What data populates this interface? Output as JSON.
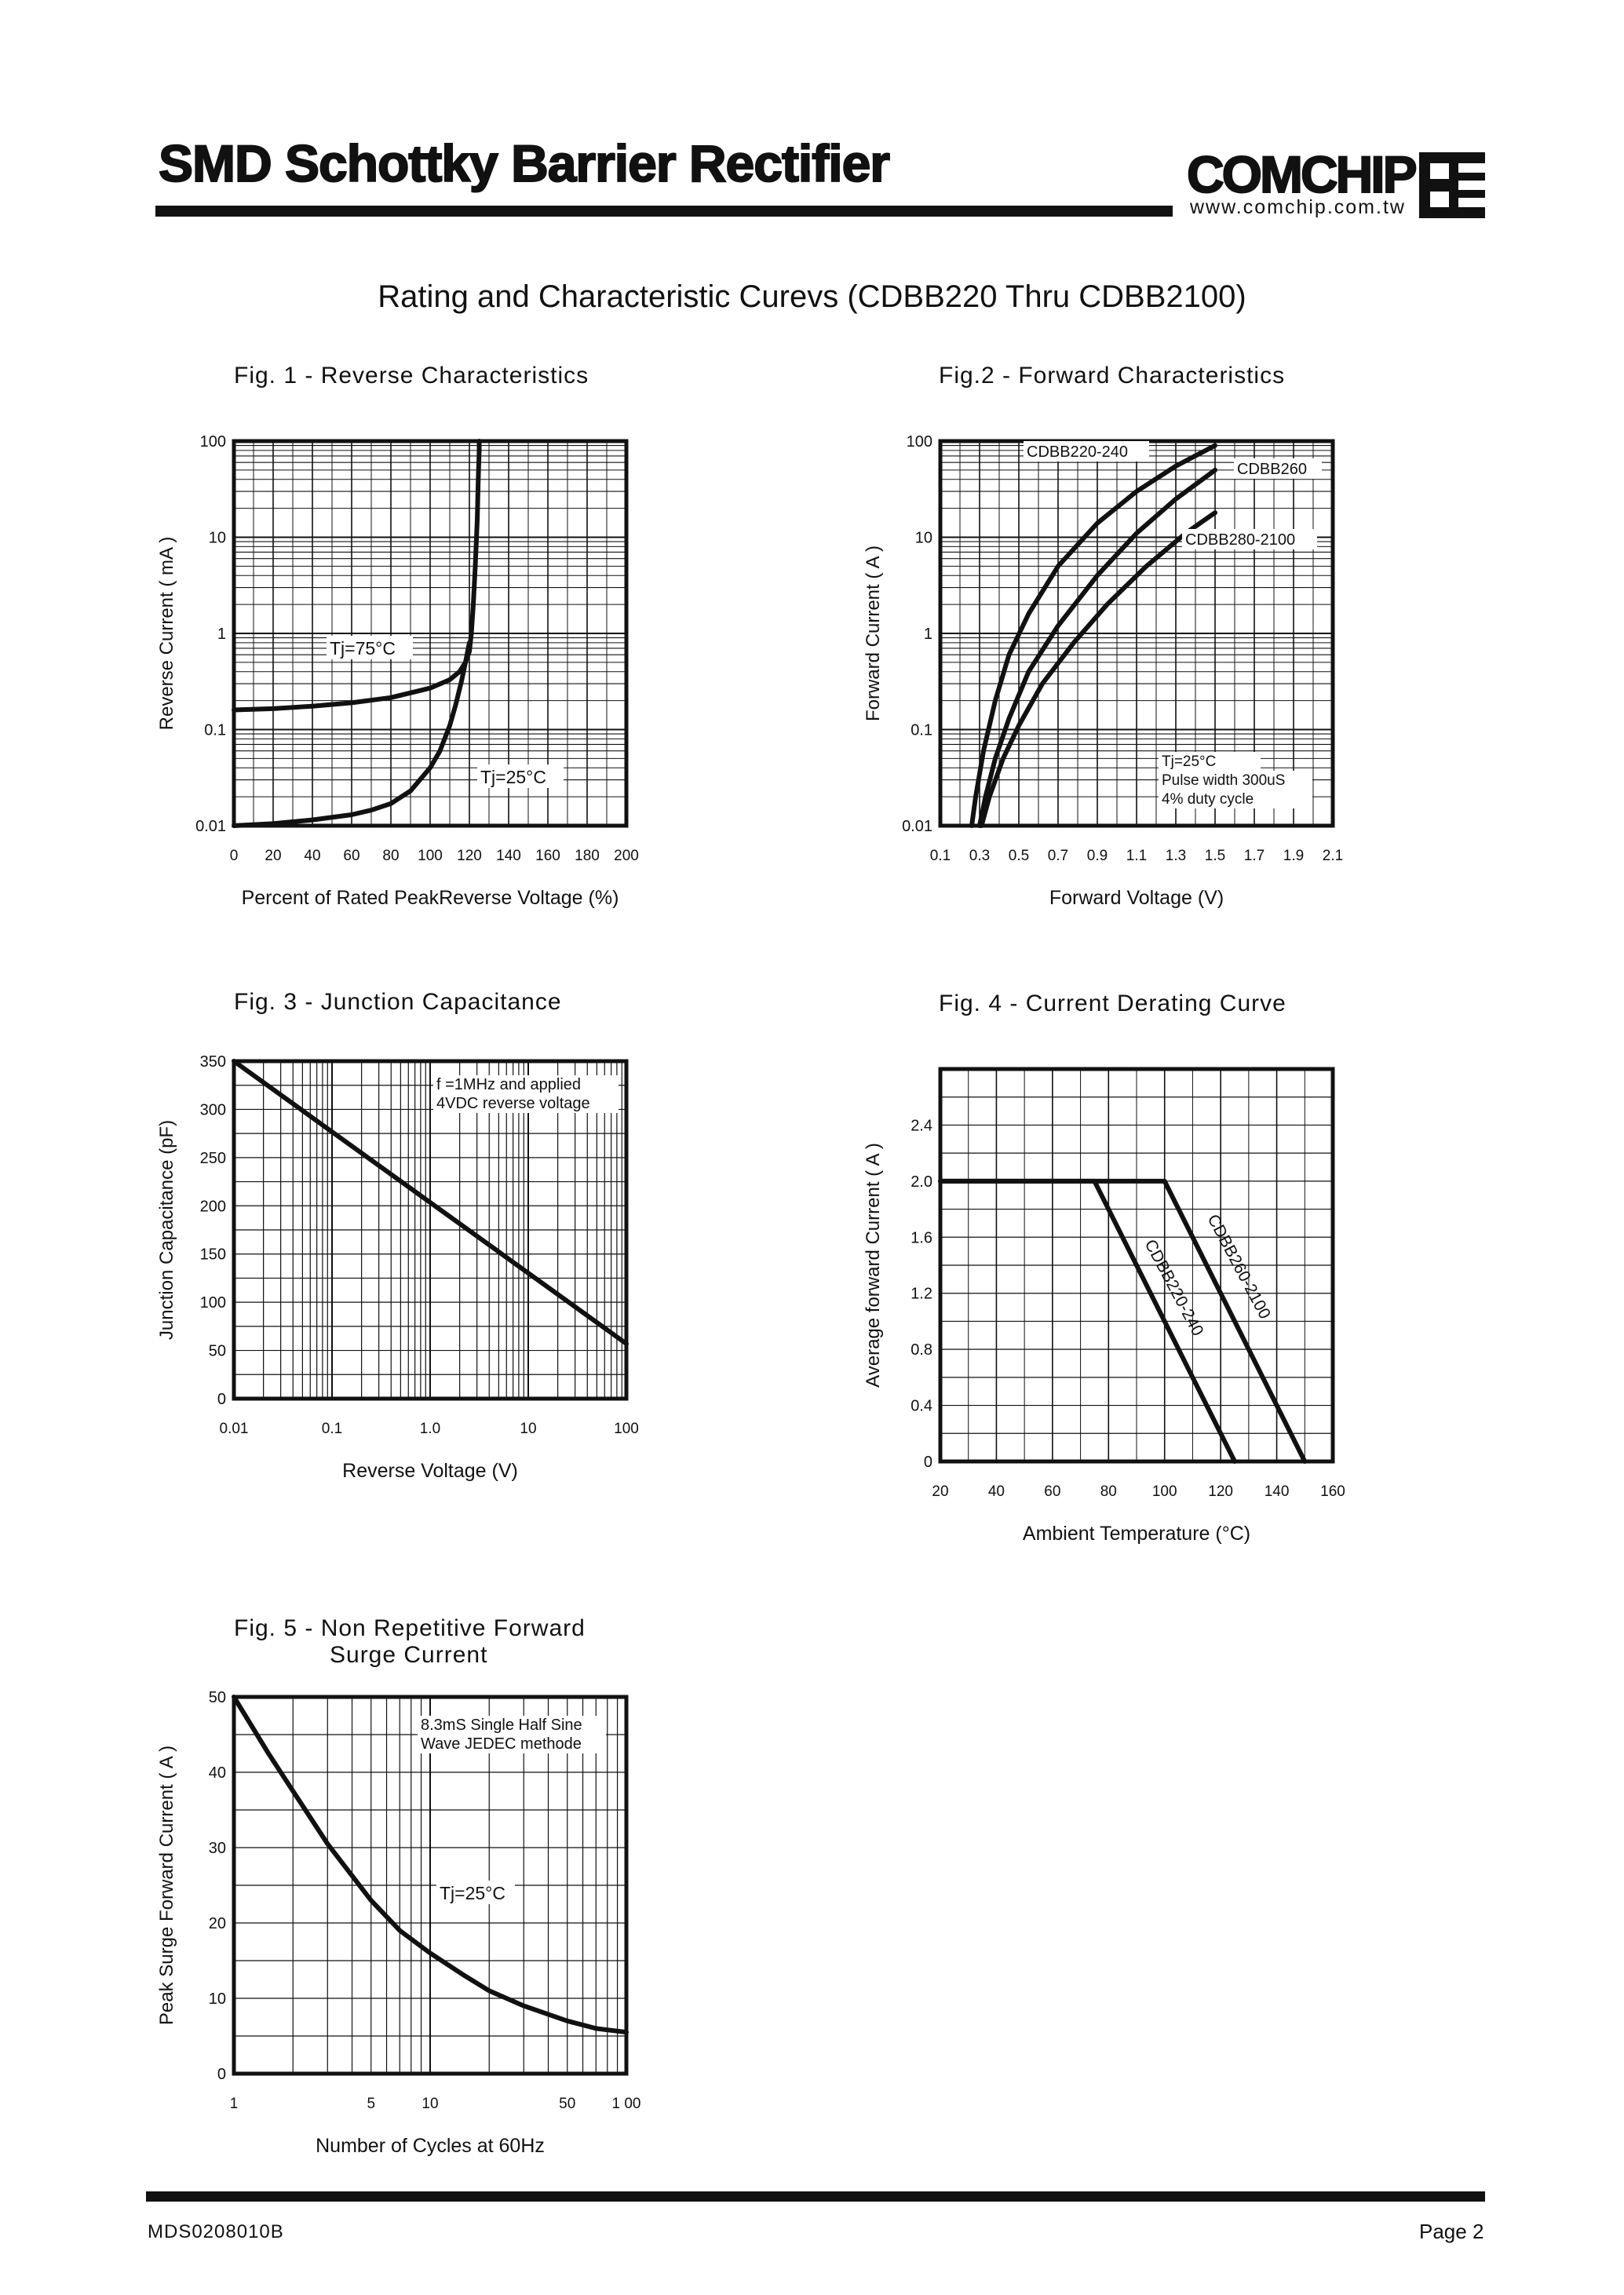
{
  "header": {
    "title": "SMD Schottky Barrier Rectifier",
    "brand": "COMCHIP",
    "url": "www.comchip.com.tw"
  },
  "subtitle": "Rating and  Characteristic Curevs (CDBB220 Thru CDBB2100)",
  "footer": {
    "doc_id": "MDS0208010B",
    "page": "Page 2"
  },
  "chart_data": [
    {
      "id": "fig1",
      "type": "line",
      "title": "Fig. 1 -  Reverse Characteristics",
      "xlabel": "Percent of Rated PeakReverse Voltage (%)",
      "ylabel": "Reverse Current ( mA )",
      "xscale": "linear",
      "yscale": "log",
      "xlim": [
        0,
        200
      ],
      "ylim": [
        0.01,
        100
      ],
      "xticks": [
        "0",
        "20",
        "40",
        "60",
        "80",
        "100",
        "120",
        "140",
        "160",
        "180",
        "200"
      ],
      "yticks": [
        "0.01",
        "0.1",
        "1",
        "10",
        "100"
      ],
      "grid": true,
      "series": [
        {
          "name": "Tj=75°C",
          "x": [
            0,
            20,
            40,
            60,
            80,
            100,
            110,
            115,
            118,
            120,
            121,
            122,
            123,
            124,
            124.5,
            125,
            125
          ],
          "y": [
            0.16,
            0.165,
            0.175,
            0.19,
            0.215,
            0.27,
            0.33,
            0.4,
            0.5,
            0.65,
            1,
            2,
            5,
            15,
            40,
            80,
            100
          ]
        },
        {
          "name": "Tj=25°C",
          "x": [
            0,
            20,
            40,
            60,
            70,
            80,
            90,
            100,
            105,
            110,
            113,
            116,
            118,
            120
          ],
          "y": [
            0.01,
            0.0105,
            0.0115,
            0.013,
            0.0145,
            0.017,
            0.023,
            0.04,
            0.06,
            0.11,
            0.18,
            0.32,
            0.5,
            0.8
          ]
        }
      ]
    },
    {
      "id": "fig2",
      "type": "line",
      "title": "Fig.2 -  Forward Characteristics",
      "xlabel": "Forward Voltage (V)",
      "ylabel": "Forward Current ( A )",
      "xscale": "linear",
      "yscale": "log",
      "xlim": [
        0.1,
        2.1
      ],
      "ylim": [
        0.01,
        100
      ],
      "xticks": [
        "0.1",
        "0.3",
        "0.5",
        "0.7",
        "0.9",
        "1.1",
        "1.3",
        "1.5",
        "1.7",
        "1.9",
        "2.1"
      ],
      "yticks": [
        "0.01",
        "0.1",
        "1",
        "10",
        "100"
      ],
      "grid": true,
      "annotation": [
        "Tj=25°C",
        "Pulse width 300uS",
        "4% duty cycle"
      ],
      "series": [
        {
          "name": "CDBB220-240",
          "x": [
            0.26,
            0.28,
            0.32,
            0.38,
            0.45,
            0.55,
            0.7,
            0.9,
            1.1,
            1.3,
            1.5
          ],
          "y": [
            0.01,
            0.02,
            0.06,
            0.2,
            0.6,
            1.6,
            5,
            14,
            30,
            55,
            90
          ]
        },
        {
          "name": "CDBB260",
          "x": [
            0.3,
            0.33,
            0.38,
            0.45,
            0.55,
            0.7,
            0.9,
            1.1,
            1.3,
            1.5
          ],
          "y": [
            0.01,
            0.02,
            0.05,
            0.13,
            0.4,
            1.2,
            4,
            11,
            25,
            50
          ]
        },
        {
          "name": "CDBB280-2100",
          "x": [
            0.31,
            0.35,
            0.42,
            0.5,
            0.62,
            0.78,
            0.95,
            1.15,
            1.35,
            1.5
          ],
          "y": [
            0.01,
            0.02,
            0.05,
            0.11,
            0.3,
            0.8,
            2,
            5,
            11,
            18
          ]
        }
      ]
    },
    {
      "id": "fig3",
      "type": "line",
      "title": "Fig. 3 -  Junction Capacitance",
      "xlabel": "Reverse Voltage (V)",
      "ylabel": "Junction Capacitance  (pF)",
      "xscale": "log",
      "yscale": "linear",
      "xlim": [
        0.01,
        100
      ],
      "ylim": [
        0,
        350
      ],
      "xticks": [
        "0.01",
        "0.1",
        "1.0",
        "10",
        "100"
      ],
      "yticks": [
        "0",
        "50",
        "100",
        "150",
        "200",
        "250",
        "300",
        "350"
      ],
      "grid": true,
      "annotation": [
        "f =1MHz and applied",
        "4VDC reverse voltage"
      ],
      "series": [
        {
          "x": [
            0.01,
            100
          ],
          "y": [
            350,
            57
          ]
        }
      ]
    },
    {
      "id": "fig4",
      "type": "line",
      "title": "Fig. 4 - Current Derating Curve",
      "xlabel": "Ambient Temperature (°C)",
      "ylabel": "Average forward Current ( A )",
      "xscale": "linear",
      "yscale": "linear",
      "xlim": [
        20,
        160
      ],
      "ylim": [
        0,
        2.8
      ],
      "xticks": [
        "20",
        "40",
        "60",
        "80",
        "100",
        "120",
        "140",
        "160"
      ],
      "yticks": [
        "0",
        "0.4",
        "0.8",
        "1.2",
        "1.6",
        "2.0",
        "2.4"
      ],
      "grid": true,
      "series": [
        {
          "name": "CDBB220-240",
          "x": [
            20,
            75,
            125
          ],
          "y": [
            2.0,
            2.0,
            0
          ]
        },
        {
          "name": "CDBB260-2100",
          "x": [
            20,
            100,
            150
          ],
          "y": [
            2.0,
            2.0,
            0
          ]
        }
      ]
    },
    {
      "id": "fig5",
      "type": "line",
      "title_lines": [
        "Fig. 5 -  Non Repetitive Forward",
        "Surge Current"
      ],
      "xlabel": "Number of Cycles at 60Hz",
      "ylabel": "Peak Surge Forward Current ( A )",
      "xscale": "log",
      "yscale": "linear",
      "xlim": [
        1,
        100
      ],
      "ylim": [
        0,
        50
      ],
      "xticks": [
        "1",
        "5",
        "10",
        "50",
        "1 00"
      ],
      "xtick_values": [
        1,
        5,
        10,
        50,
        100
      ],
      "yticks": [
        "0",
        "10",
        "20",
        "30",
        "40",
        "50"
      ],
      "grid": true,
      "annotation": [
        "8.3mS Single Half Sine",
        "Wave JEDEC methode",
        "Tj=25°C"
      ],
      "series": [
        {
          "x": [
            1,
            1.5,
            2,
            3,
            5,
            7,
            10,
            15,
            20,
            30,
            50,
            70,
            100
          ],
          "y": [
            50,
            42.5,
            37.5,
            30.5,
            23,
            19,
            16,
            13,
            11,
            9,
            7,
            6,
            5.5
          ]
        }
      ]
    }
  ]
}
